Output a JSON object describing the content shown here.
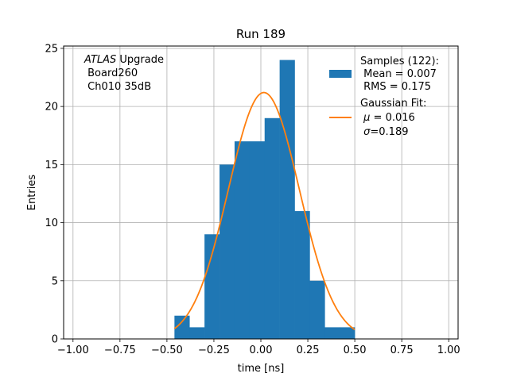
{
  "chart_data": {
    "type": "bar",
    "title": "Run 189",
    "xlabel": "time [ns]",
    "ylabel": "Entries",
    "xlim": [
      -1.05,
      1.05
    ],
    "ylim": [
      0,
      25.2
    ],
    "grid": true,
    "xticks": [
      -1.0,
      -0.75,
      -0.5,
      -0.25,
      0.0,
      0.25,
      0.5,
      0.75,
      1.0
    ],
    "xtick_labels": [
      "−1.00",
      "−0.75",
      "−0.50",
      "−0.25",
      "0.00",
      "0.25",
      "0.50",
      "0.75",
      "1.00"
    ],
    "yticks": [
      0,
      5,
      10,
      15,
      20,
      25
    ],
    "ytick_labels": [
      "0",
      "5",
      "10",
      "15",
      "20",
      "25"
    ],
    "bar_color": "#1f77b4",
    "fit_color": "#ff7f0e",
    "histogram": {
      "bin_edges": [
        -0.46,
        -0.38,
        -0.3,
        -0.22,
        -0.14,
        -0.06,
        0.02,
        0.1,
        0.18,
        0.26,
        0.34,
        0.42,
        0.5
      ],
      "counts": [
        2,
        1,
        9,
        15,
        17,
        17,
        19,
        24,
        11,
        5,
        1,
        1
      ]
    },
    "gaussian_fit": {
      "mu": 0.016,
      "sigma": 0.189,
      "peak": 21.2,
      "x_range": [
        -0.46,
        0.5
      ]
    },
    "legend": {
      "placement": "top-right",
      "samples_line1": "Samples (122):",
      "samples_line2": " Mean = 0.007",
      "samples_line3": " RMS = 0.175",
      "fit_line1": "Gaussian Fit:",
      "fit_line2_symbol": "μ",
      "fit_line2_rest": " = 0.016",
      "fit_line3_symbol": "σ",
      "fit_line3_rest": "=0.189"
    },
    "annotation": {
      "placement": "top-left",
      "line1_italic": "ATLAS",
      "line1_rest": " Upgrade",
      "line2": " Board260",
      "line3": " Ch010 35dB"
    }
  }
}
